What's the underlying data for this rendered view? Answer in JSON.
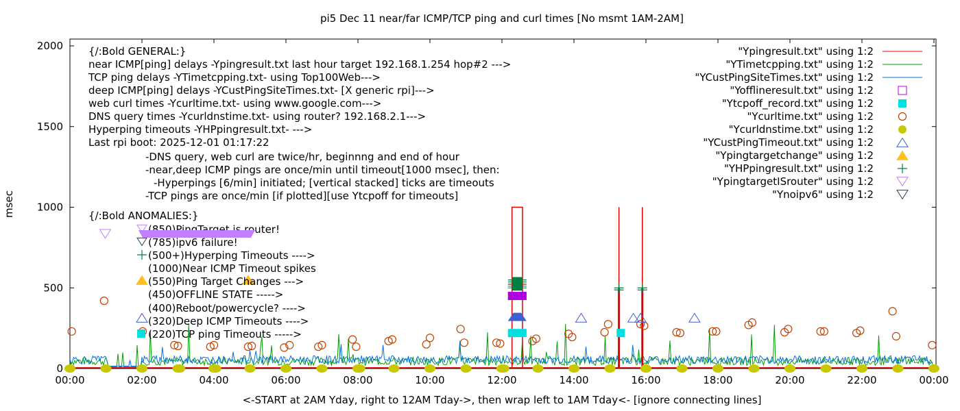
{
  "chart_data": {
    "type": "line",
    "title": "pi5 Dec 11  near/far ICMP/TCP ping and curl times [No msmt 1AM-2AM]",
    "xlabel": "<-START at 2AM Yday, right to 12AM Tday->, then wrap left to 1AM Tday<- [ignore connecting lines]",
    "ylabel": "msec",
    "xlim": [
      0,
      24
    ],
    "ylim": [
      0,
      2000
    ],
    "x_ticks": [
      "00:00",
      "02:00",
      "04:00",
      "06:00",
      "08:00",
      "10:00",
      "12:00",
      "14:00",
      "16:00",
      "18:00",
      "20:00",
      "22:00",
      "00:00"
    ],
    "y_ticks": [
      "0",
      "500",
      "1000",
      "1500",
      "2000"
    ],
    "grid": false,
    "legend_position": "top-right",
    "colors": {
      "ping": "#e50000",
      "tcp": "#00a000",
      "deep": "#0072e0",
      "offline": "#b000e0",
      "tcpoff": "#00e0e0",
      "curl": "#c04000",
      "dns": "#c8c800",
      "custtimeout": "#4060d0",
      "targetchange": "#ffc020",
      "hp": "#008040",
      "isrouter": "#c080ff",
      "noipv6": "#204060"
    },
    "legend": [
      {
        "label": "\"Ypingresult.txt\" using 1:2",
        "style": "line",
        "key": "ping"
      },
      {
        "label": "\"YTimetcpping.txt\" using 1:2",
        "style": "line",
        "key": "tcp"
      },
      {
        "label": "\"YCustPingSiteTimes.txt\" using 1:2",
        "style": "line",
        "key": "deep"
      },
      {
        "label": "\"Yofflineresult.txt\" using 1:2",
        "style": "open-square",
        "key": "offline"
      },
      {
        "label": "\"Ytcpoff_record.txt\" using 1:2",
        "style": "filled-square",
        "key": "tcpoff"
      },
      {
        "label": "\"Ycurltime.txt\" using 1:2",
        "style": "open-circle",
        "key": "curl"
      },
      {
        "label": "\"Ycurldnstime.txt\" using 1:2",
        "style": "filled-circle",
        "key": "dns"
      },
      {
        "label": "\"YCustPingTimeout.txt\" using 1:2",
        "style": "open-triangle",
        "key": "custtimeout"
      },
      {
        "label": "\"Ypingtargetchange\" using 1:2",
        "style": "filled-triangle",
        "key": "targetchange"
      },
      {
        "label": "\"YHPpingresult.txt\" using 1:2",
        "style": "plus",
        "key": "hp"
      },
      {
        "label": "\"YpingtargetISrouter\" using 1:2",
        "style": "open-down-triangle",
        "key": "isrouter"
      },
      {
        "label": "\"Ynoipv6\" using 1:2",
        "style": "open-down-triangle",
        "key": "noipv6"
      }
    ],
    "annotations_general": [
      "{/:Bold GENERAL:}",
      "near ICMP[ping] delays -Ypingresult.txt last hour target 192.168.1.254 hop#2 --->",
      "TCP ping delays -YTimetcpping.txt- using Top100Web--->",
      "deep ICMP[ping] delays -YCustPingSiteTimes.txt- [X generic rpi]--->",
      "web curl times -Ycurltime.txt- using www.google.com--->",
      "DNS query times -Ycurldnstime.txt- using router? 192.168.2.1--->",
      "Hyperping timeouts -YHPpingresult.txt- --->",
      "Last rpi boot: 2025-12-01 01:17:22"
    ],
    "annotations_notes": [
      "-DNS query, web curl are twice/hr, beginnng and end of hour",
      "-near,deep ICMP pings are once/min until timeout[1000 msec], then:",
      "  -Hyperpings [6/min] initiated; [vertical stacked] ticks are timeouts",
      "-TCP pings are once/min [if plotted][use Ytcpoff for timeouts]"
    ],
    "annotations_anomalies": [
      "{/:Bold ANOMALIES:}",
      "(850)PingTarget is router!",
      "(785)ipv6 failure!",
      "(500+)Hyperping Timeouts ---->",
      "(1000)Near ICMP Timeout spikes",
      "(550)Ping Target Changes --->",
      "(450)OFFLINE STATE ----->",
      "(400)Reboot/powercycle? ---->",
      "(320)Deep ICMP Timeouts ---->",
      "(220)TCP ping Timeouts ----->"
    ],
    "baseline_ping_msec": 5,
    "baseline_tcp_msec": 20,
    "baseline_deep_msec": 30,
    "ping_timeout_spikes": [
      {
        "x_start": 12.28,
        "x_end": 12.57,
        "y": 1000
      },
      {
        "x": 15.25,
        "y": 1000
      },
      {
        "x": 15.9,
        "y": 1000
      }
    ],
    "curl_points": [
      [
        0.05,
        230
      ],
      [
        0.95,
        420
      ],
      [
        2.02,
        230
      ],
      [
        2.9,
        145
      ],
      [
        3.0,
        140
      ],
      [
        3.9,
        135
      ],
      [
        4.0,
        145
      ],
      [
        4.95,
        135
      ],
      [
        5.05,
        140
      ],
      [
        5.95,
        130
      ],
      [
        6.1,
        145
      ],
      [
        6.9,
        135
      ],
      [
        7.0,
        145
      ],
      [
        7.85,
        180
      ],
      [
        7.95,
        135
      ],
      [
        8.85,
        170
      ],
      [
        8.95,
        180
      ],
      [
        9.9,
        150
      ],
      [
        10.0,
        190
      ],
      [
        10.85,
        245
      ],
      [
        10.95,
        160
      ],
      [
        11.85,
        160
      ],
      [
        11.95,
        155
      ],
      [
        12.85,
        170
      ],
      [
        12.95,
        185
      ],
      [
        13.85,
        215
      ],
      [
        13.95,
        195
      ],
      [
        14.85,
        225
      ],
      [
        14.95,
        275
      ],
      [
        15.85,
        275
      ],
      [
        15.95,
        265
      ],
      [
        16.85,
        225
      ],
      [
        16.95,
        220
      ],
      [
        17.85,
        230
      ],
      [
        17.95,
        230
      ],
      [
        18.85,
        270
      ],
      [
        18.95,
        285
      ],
      [
        19.85,
        225
      ],
      [
        19.95,
        245
      ],
      [
        20.85,
        230
      ],
      [
        20.95,
        230
      ],
      [
        21.85,
        220
      ],
      [
        21.95,
        235
      ],
      [
        22.85,
        355
      ],
      [
        22.95,
        200
      ],
      [
        23.95,
        145
      ]
    ],
    "dns_points_hours": [
      0,
      1,
      2,
      3,
      3.05,
      4,
      4.05,
      5,
      6,
      7,
      8,
      8.05,
      9,
      10,
      11,
      12,
      12.05,
      13,
      14,
      15,
      16,
      17,
      18,
      19,
      20,
      21,
      22,
      23,
      24
    ],
    "custtimeout_points": [
      [
        14.2,
        315
      ],
      [
        15.65,
        315
      ],
      [
        15.85,
        315
      ],
      [
        17.35,
        315
      ]
    ],
    "tcpoff_points": [
      [
        15.3,
        220
      ]
    ],
    "isrouter_points": [
      [
        0.98,
        835
      ]
    ],
    "targetchange_points": [
      [
        4.95,
        550
      ]
    ],
    "hp_points": [
      [
        15.25,
        500
      ],
      [
        15.9,
        500
      ]
    ],
    "stacked_event": {
      "x_start": 12.28,
      "x_end": 12.57,
      "hp_timeouts_y": [
        500,
        510,
        520,
        530,
        540,
        550
      ],
      "offline_y": 450,
      "custtimeout_y": 320,
      "tcpoff_y": 220
    }
  }
}
